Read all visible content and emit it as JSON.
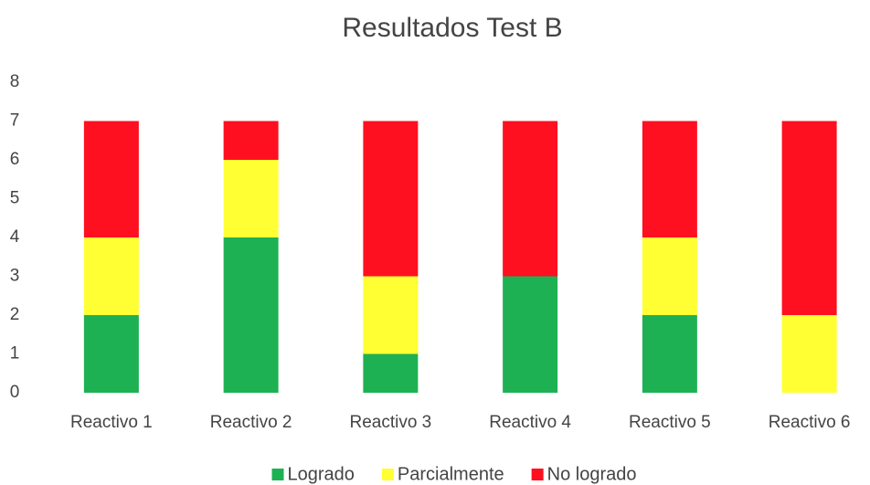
{
  "chart_data": {
    "type": "stacked_bar",
    "title": "Resultados Test B",
    "categories": [
      "Reactivo 1",
      "Reactivo 2",
      "Reactivo 3",
      "Reactivo 4",
      "Reactivo 5",
      "Reactivo 6"
    ],
    "series": [
      {
        "name": "Logrado",
        "color": "#1eb154",
        "values": [
          2,
          4,
          1,
          3,
          2,
          0
        ]
      },
      {
        "name": "Parcialmente",
        "color": "#ffff33",
        "values": [
          2,
          2,
          2,
          0,
          2,
          2
        ]
      },
      {
        "name": "No logrado",
        "color": "#fe1020",
        "values": [
          3,
          1,
          4,
          4,
          3,
          5
        ]
      }
    ],
    "ylim": [
      0,
      8
    ],
    "yticks": [
      0,
      1,
      2,
      3,
      4,
      5,
      6,
      7,
      8
    ],
    "grid": false,
    "legend": "bottom"
  }
}
